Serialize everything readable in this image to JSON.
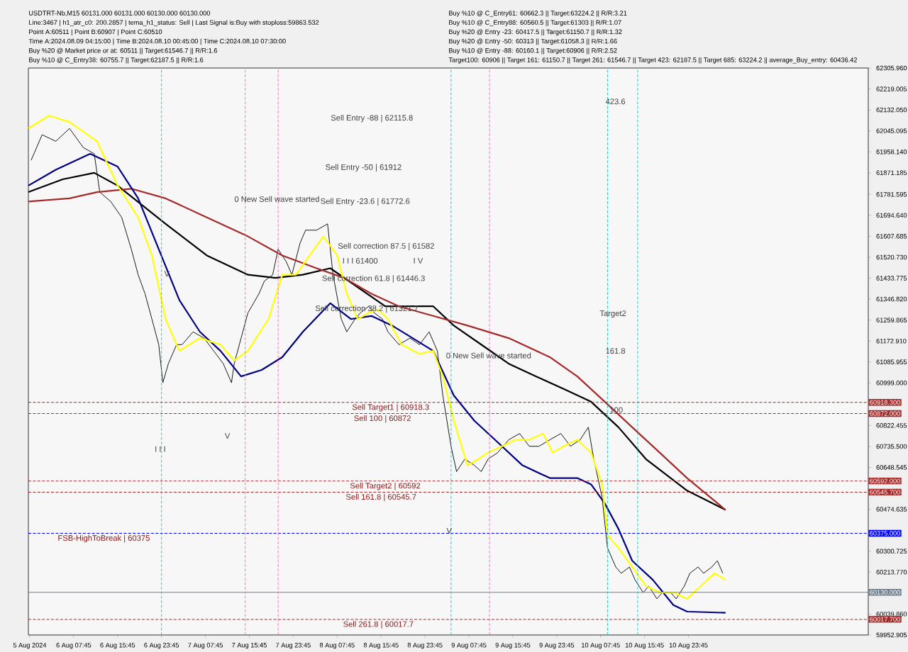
{
  "chart_data": {
    "type": "line",
    "marker": "none",
    "line_style": "solid",
    "xlim": [
      "2024-08-05T23:30",
      "2024-08-12T08:30"
    ],
    "ylim": [
      59952.905,
      62305.96
    ],
    "xticks": [
      {
        "value": "2024-08-05T23:45",
        "label": "5 Aug 2024"
      },
      {
        "value": "2024-08-06T07:45",
        "label": "6 Aug 07:45"
      },
      {
        "value": "2024-08-06T15:45",
        "label": "6 Aug 15:45"
      },
      {
        "value": "2024-08-06T23:45",
        "label": "6 Aug 23:45"
      },
      {
        "value": "2024-08-07T07:45",
        "label": "7 Aug 07:45"
      },
      {
        "value": "2024-08-07T15:45",
        "label": "7 Aug 15:45"
      },
      {
        "value": "2024-08-07T23:45",
        "label": "7 Aug 23:45"
      },
      {
        "value": "2024-08-08T07:45",
        "label": "8 Aug 07:45"
      },
      {
        "value": "2024-08-08T15:45",
        "label": "8 Aug 15:45"
      },
      {
        "value": "2024-08-08T23:45",
        "label": "8 Aug 23:45"
      },
      {
        "value": "2024-08-09T07:45",
        "label": "9 Aug 07:45"
      },
      {
        "value": "2024-08-09T15:45",
        "label": "9 Aug 15:45"
      },
      {
        "value": "2024-08-09T23:45",
        "label": "9 Aug 23:45"
      },
      {
        "value": "2024-08-10T07:45",
        "label": "10 Aug 07:45"
      },
      {
        "value": "2024-08-10T15:45",
        "label": "10 Aug 15:45"
      },
      {
        "value": "2024-08-10T23:45",
        "label": "10 Aug 23:45"
      }
    ],
    "yticks": [
      {
        "value": 62305.96,
        "label": "62305.960"
      },
      {
        "value": 62219.005,
        "label": "62219.005"
      },
      {
        "value": 62132.05,
        "label": "62132.050"
      },
      {
        "value": 62045.095,
        "label": "62045.095"
      },
      {
        "value": 61958.14,
        "label": "61958.140"
      },
      {
        "value": 61871.185,
        "label": "61871.185"
      },
      {
        "value": 61781.595,
        "label": "61781.595"
      },
      {
        "value": 61694.64,
        "label": "61694.640"
      },
      {
        "value": 61607.685,
        "label": "61607.685"
      },
      {
        "value": 61520.73,
        "label": "61520.730"
      },
      {
        "value": 61433.775,
        "label": "61433.775"
      },
      {
        "value": 61346.82,
        "label": "61346.820"
      },
      {
        "value": 61259.865,
        "label": "61259.865"
      },
      {
        "value": 61172.91,
        "label": "61172.910"
      },
      {
        "value": 61085.955,
        "label": "61085.955"
      },
      {
        "value": 60999,
        "label": "60999.000"
      },
      {
        "value": 60822.455,
        "label": "60822.455"
      },
      {
        "value": 60735.5,
        "label": "60735.500"
      },
      {
        "value": 60648.545,
        "label": "60648.545"
      },
      {
        "value": 60474.635,
        "label": "60474.635"
      },
      {
        "value": 60300.725,
        "label": "60300.725"
      },
      {
        "value": 60213.77,
        "label": "60213.770"
      },
      {
        "value": 60039.86,
        "label": "60039.860"
      },
      {
        "value": 59952.905,
        "label": "59952.905"
      }
    ],
    "series": [
      {
        "color": "#000000",
        "x": [
          "2024-08-06T00:00",
          "2024-08-06T02:00",
          "2024-08-06T04:30",
          "2024-08-06T07:00",
          "2024-08-06T09:30",
          "2024-08-06T11:30",
          "2024-08-06T12:30",
          "2024-08-06T14:30",
          "2024-08-06T16:30",
          "2024-08-06T18:15",
          "2024-08-06T19:30",
          "2024-08-06T20:45",
          "2024-08-06T22:00",
          "2024-08-06T23:15",
          "2024-08-07T00:00",
          "2024-08-07T01:00",
          "2024-08-07T02:30",
          "2024-08-07T03:30",
          "2024-08-07T05:30",
          "2024-08-07T07:30",
          "2024-08-07T09:15",
          "2024-08-07T11:00",
          "2024-08-07T12:30",
          "2024-08-07T13:00",
          "2024-08-07T14:15",
          "2024-08-07T15:30",
          "2024-08-07T17:30",
          "2024-08-07T18:30",
          "2024-08-07T20:00",
          "2024-08-07T21:00",
          "2024-08-07T22:30",
          "2024-08-07T23:30",
          "2024-08-08T01:00",
          "2024-08-08T02:00",
          "2024-08-08T04:00",
          "2024-08-08T06:00",
          "2024-08-08T07:00",
          "2024-08-08T08:30",
          "2024-08-08T09:30",
          "2024-08-08T11:00",
          "2024-08-08T12:00",
          "2024-08-08T13:30",
          "2024-08-08T14:30",
          "2024-08-08T16:00",
          "2024-08-08T17:00",
          "2024-08-08T19:00",
          "2024-08-08T21:00",
          "2024-08-08T22:45",
          "2024-08-09T00:30",
          "2024-08-09T02:00",
          "2024-08-09T03:00",
          "2024-08-09T04:30",
          "2024-08-09T05:30",
          "2024-08-09T07:00",
          "2024-08-09T08:45",
          "2024-08-09T10:00",
          "2024-08-09T11:15",
          "2024-08-09T13:00",
          "2024-08-09T15:00",
          "2024-08-09T17:00",
          "2024-08-09T18:45",
          "2024-08-09T20:30",
          "2024-08-09T22:30",
          "2024-08-10T00:30",
          "2024-08-10T02:15",
          "2024-08-10T04:00",
          "2024-08-10T05:30",
          "2024-08-10T06:30",
          "2024-08-10T08:00",
          "2024-08-10T09:00",
          "2024-08-10T10:30",
          "2024-08-10T11:30",
          "2024-08-10T13:00",
          "2024-08-10T14:00",
          "2024-08-10T15:30",
          "2024-08-10T16:30",
          "2024-08-10T18:00",
          "2024-08-10T19:00",
          "2024-08-10T20:30",
          "2024-08-10T21:30",
          "2024-08-10T23:00",
          "2024-08-11T00:00",
          "2024-08-11T01:30",
          "2024-08-11T02:30",
          "2024-08-11T04:00",
          "2024-08-11T05:00",
          "2024-08-11T06:00"
        ],
        "values": [
          61923,
          62029,
          62002,
          62055,
          61976,
          61950,
          61791,
          61752,
          61686,
          61554,
          61448,
          61369,
          61264,
          61158,
          61000,
          61079,
          61158,
          61158,
          61211,
          61185,
          61132,
          61079,
          61000,
          61079,
          61185,
          61290,
          61369,
          61422,
          61448,
          61554,
          61501,
          61448,
          61580,
          61633,
          61633,
          61659,
          61448,
          61264,
          61211,
          61264,
          61290,
          61317,
          61290,
          61264,
          61211,
          61158,
          61185,
          61158,
          61211,
          61132,
          60947,
          60736,
          60631,
          60683,
          60657,
          60631,
          60683,
          60710,
          60763,
          60789,
          60736,
          60736,
          60763,
          60789,
          60736,
          60763,
          60815,
          60683,
          60525,
          60314,
          60235,
          60209,
          60235,
          60182,
          60129,
          60156,
          60103,
          60129,
          60129,
          60103,
          60156,
          60209,
          60235,
          60209,
          60235,
          60261,
          60209
        ]
      },
      {
        "color": "#000000",
        "x": [
          "2024-08-05T23:30",
          "2024-08-06T05:45",
          "2024-08-06T11:30",
          "2024-08-06T15:45",
          "2024-08-07T00:30",
          "2024-08-07T08:00",
          "2024-08-07T15:30",
          "2024-08-07T20:30",
          "2024-08-08T01:30",
          "2024-08-08T06:30",
          "2024-08-08T11:30",
          "2024-08-08T16:30",
          "2024-08-09T01:15",
          "2024-08-09T05:00",
          "2024-08-09T10:00",
          "2024-08-09T15:00",
          "2024-08-09T20:00",
          "2024-08-10T01:00",
          "2024-08-10T06:00",
          "2024-08-10T11:00",
          "2024-08-10T16:00",
          "2024-08-10T23:30",
          "2024-08-11T06:30"
        ],
        "values": [
          61791,
          61844,
          61871,
          61818,
          61659,
          61528,
          61448,
          61435,
          61448,
          61475,
          61396,
          61317,
          61317,
          61237,
          61158,
          61079,
          61026,
          60974,
          60921,
          60815,
          60683,
          60552,
          60472
        ]
      },
      {
        "color": "#a52a2a",
        "x": [
          "2024-08-05T23:30",
          "2024-08-06T07:00",
          "2024-08-06T12:00",
          "2024-08-06T18:15",
          "2024-08-07T00:30",
          "2024-08-07T08:00",
          "2024-08-07T15:30",
          "2024-08-07T21:45",
          "2024-08-08T04:00",
          "2024-08-08T09:00",
          "2024-08-08T14:00",
          "2024-08-08T19:00",
          "2024-08-09T01:15",
          "2024-08-09T07:30",
          "2024-08-09T15:00",
          "2024-08-09T22:30",
          "2024-08-10T03:30",
          "2024-08-10T08:30",
          "2024-08-10T13:30",
          "2024-08-10T18:30",
          "2024-08-10T23:30",
          "2024-08-11T06:30"
        ],
        "values": [
          61752,
          61765,
          61791,
          61805,
          61765,
          61686,
          61607,
          61528,
          61475,
          61435,
          61369,
          61317,
          61277,
          61237,
          61185,
          61106,
          61026,
          60921,
          60815,
          60710,
          60604,
          60472
        ]
      },
      {
        "color": "#000080",
        "x": [
          "2024-08-05T23:30",
          "2024-08-06T04:30",
          "2024-08-06T10:45",
          "2024-08-06T15:45",
          "2024-08-06T19:30",
          "2024-08-06T23:15",
          "2024-08-07T03:00",
          "2024-08-07T06:45",
          "2024-08-07T10:30",
          "2024-08-07T14:15",
          "2024-08-07T18:00",
          "2024-08-07T21:45",
          "2024-08-08T01:30",
          "2024-08-08T06:30",
          "2024-08-08T10:15",
          "2024-08-08T14:00",
          "2024-08-08T17:45",
          "2024-08-08T21:30",
          "2024-08-09T01:15",
          "2024-08-09T05:00",
          "2024-08-09T08:45",
          "2024-08-09T12:30",
          "2024-08-09T17:30",
          "2024-08-09T22:30",
          "2024-08-10T03:30",
          "2024-08-10T06:00",
          "2024-08-10T08:30",
          "2024-08-10T11:00",
          "2024-08-10T13:30",
          "2024-08-10T17:15",
          "2024-08-10T21:00",
          "2024-08-10T23:30",
          "2024-08-11T06:30"
        ],
        "values": [
          61818,
          61884,
          61950,
          61897,
          61765,
          61554,
          61343,
          61211,
          61132,
          61026,
          61053,
          61106,
          61211,
          61330,
          61264,
          61277,
          61237,
          61185,
          61132,
          60947,
          60842,
          60763,
          60657,
          60604,
          60604,
          60578,
          60499,
          60393,
          60261,
          60182,
          60077,
          60050,
          60045
        ]
      },
      {
        "color": "#ffff00",
        "x": [
          "2024-08-05T23:30",
          "2024-08-06T03:15",
          "2024-08-06T07:00",
          "2024-08-06T12:00",
          "2024-08-06T15:45",
          "2024-08-06T19:30",
          "2024-08-06T22:00",
          "2024-08-07T00:30",
          "2024-08-07T03:00",
          "2024-08-07T06:45",
          "2024-08-07T10:30",
          "2024-08-07T13:00",
          "2024-08-07T15:30",
          "2024-08-07T19:15",
          "2024-08-07T21:45",
          "2024-08-08T00:15",
          "2024-08-08T02:45",
          "2024-08-08T05:15",
          "2024-08-08T07:45",
          "2024-08-08T09:30",
          "2024-08-08T11:30",
          "2024-08-08T13:30",
          "2024-08-08T15:15",
          "2024-08-08T17:00",
          "2024-08-08T19:30",
          "2024-08-08T22:45",
          "2024-08-09T01:15",
          "2024-08-09T03:00",
          "2024-08-09T05:00",
          "2024-08-09T07:30",
          "2024-08-09T09:30",
          "2024-08-09T11:15",
          "2024-08-09T13:45",
          "2024-08-09T16:15",
          "2024-08-09T18:45",
          "2024-08-09T21:15",
          "2024-08-09T23:00",
          "2024-08-10T01:00",
          "2024-08-10T03:30",
          "2024-08-10T06:00",
          "2024-08-10T08:00",
          "2024-08-10T09:00",
          "2024-08-10T11:00",
          "2024-08-10T13:30",
          "2024-08-10T16:00",
          "2024-08-10T18:30",
          "2024-08-10T21:00",
          "2024-08-10T23:30",
          "2024-08-11T02:00",
          "2024-08-11T04:30",
          "2024-08-11T06:30"
        ],
        "values": [
          62055,
          62108,
          62082,
          62002,
          61818,
          61686,
          61528,
          61264,
          61132,
          61185,
          61158,
          61092,
          61132,
          61264,
          61448,
          61448,
          61528,
          61607,
          61528,
          61369,
          61264,
          61290,
          61303,
          61264,
          61158,
          61119,
          61132,
          61026,
          60842,
          60657,
          60683,
          60710,
          60736,
          60763,
          60763,
          60789,
          60710,
          60736,
          60763,
          60710,
          60578,
          60367,
          60314,
          60235,
          60156,
          60129,
          60129,
          60103,
          60156,
          60209,
          60182
        ]
      }
    ],
    "ref_lines": [
      {
        "axis": "y",
        "value": 60918.3,
        "label": "60918.300",
        "color": "#a52a2a",
        "line_style": "dashed"
      },
      {
        "axis": "y",
        "value": 60872,
        "label": "60872.000",
        "color": "#a52a2a",
        "line_style": "dashed"
      },
      {
        "axis": "y",
        "value": 60592,
        "label": "60592.000",
        "color": "#a52a2a",
        "line_style": "dashed"
      },
      {
        "axis": "y",
        "value": 60545.7,
        "label": "60545.700",
        "color": "#a52a2a",
        "line_style": "dashed"
      },
      {
        "axis": "y",
        "value": 60375,
        "label": "60375.000",
        "color": "#0000ff",
        "line_style": "dashed"
      },
      {
        "axis": "y",
        "value": 60130,
        "label": "60130.000",
        "color": "#708090",
        "line_style": "solid"
      },
      {
        "axis": "y",
        "value": 60017.7,
        "label": "60017.700",
        "color": "#a52a2a",
        "line_style": "dashed"
      },
      {
        "axis": "x",
        "value": "2024-08-06T23:45",
        "color": "#00ced1",
        "line_style": "dashed"
      },
      {
        "axis": "x",
        "value": "2024-08-09T04:30",
        "color": "#00ced1",
        "line_style": "dashed"
      },
      {
        "axis": "x",
        "value": "2024-08-10T09:00",
        "color": "#00ced1",
        "line_style": "dashed"
      },
      {
        "axis": "x",
        "value": "2024-08-10T14:30",
        "color": "#00ced1",
        "line_style": "dashed"
      },
      {
        "axis": "x",
        "value": "2024-08-07T15:00",
        "color": "#ff69b4",
        "line_style": "dashed"
      },
      {
        "axis": "x",
        "value": "2024-08-07T21:00",
        "color": "#ff69b4",
        "line_style": "dashed"
      },
      {
        "axis": "x",
        "value": "2024-08-09T11:30",
        "color": "#ff69b4",
        "line_style": "dashed"
      }
    ],
    "annotations": [
      "USDTRT-Nb,M15  60131.000 60131.000 60130.000 60130.000",
      "Line:3467 | h1_atr_c0: 200.2857 | tema_h1_status: Sell | Last Signal is:Buy with stoploss:59863.532",
      "Point A:60511 | Point B:60907 | Point C:60510",
      "Time A:2024.08.09 04:15:00 | Time B:2024.08.10 00:45:00 | Time C:2024.08.10 07:30:00",
      "Buy %20 @ Market price or at: 60511 || Target:61546.7 || R/R:1.6",
      "Buy %10 @ C_Entry38: 60755.7 || Target:62187.5 || R/R:1.6",
      "Buy %10 @ C_Entry61: 60662.3 || Target:63224.2 || R/R:3.21",
      "Buy %10 @ C_Entry88: 60560.5 || Target:61303 || R/R:1.07",
      "Buy %20 @ Entry -23: 60417.5 || Target:61150.7 || R/R:1.32",
      "Buy %20 @ Entry -50: 60313 || Target:61058.3 || R/R:1.66",
      "Buy %10 @ Entry -88: 60160.1 || Target:60906 || R/R:2.52",
      "Target100: 60906 || Target 161: 61150.7 || Target 261: 61546.7 || Target 423: 62187.5 || Target 685: 63224.2 || average_Buy_entry: 60436.42",
      "Sell Entry -88 | 62115.8",
      "Sell Entry -50 | 61912",
      "Sell Entry -23.6 | 61772.6",
      "0 New Sell wave started",
      "Sell correction 87.5 | 61582",
      "I I I 61400",
      "I V",
      "Sell correction 61.8 | 61446.3",
      "Sell correction 38.2 | 61321.7",
      "0 New Sell wave started",
      "423.6",
      "Target2",
      "161.8",
      "100",
      "V",
      "I I I",
      "V",
      "V",
      {
        "text": "Sell Target1 | 60918.3",
        "x": "2024-08-08T17:30",
        "y": 60918.3
      },
      {
        "text": "Sell 100 | 60872",
        "x": "2024-08-08T16:00",
        "y": 60872
      },
      {
        "text": "Sell Target2 | 60592",
        "x": "2024-08-08T16:30",
        "y": 60592
      },
      {
        "text": "Sell 161.8 | 60545.7",
        "x": "2024-08-08T15:45",
        "y": 60545.7
      },
      {
        "text": "FSB-HighToBreak | 60375",
        "x": "2024-08-06T13:15",
        "y": 60375
      },
      {
        "text": "Sell 261.8 | 60017.7",
        "x": "2024-08-08T15:15",
        "y": 60017.7
      }
    ]
  }
}
